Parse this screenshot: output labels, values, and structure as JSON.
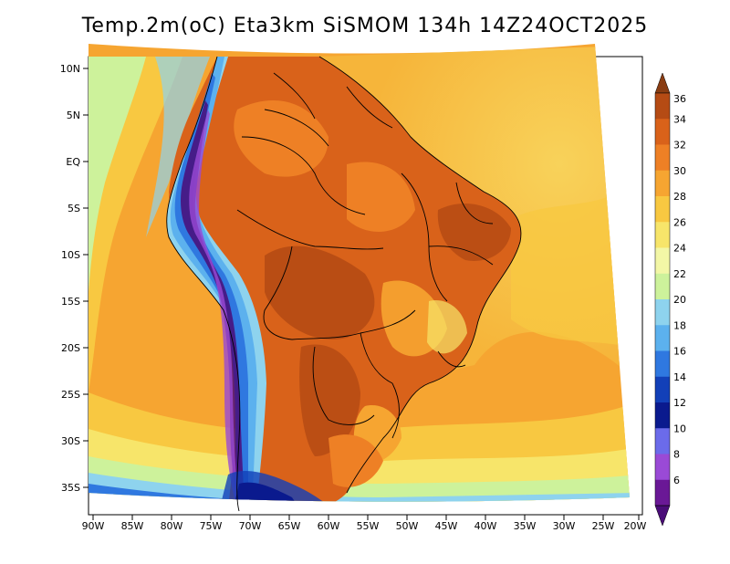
{
  "title": "Temp.2m(oC) Eta3km SiSMOM 134h 14Z24OCT2025",
  "lat_labels": [
    "10N",
    "5N",
    "EQ",
    "5S",
    "10S",
    "15S",
    "20S",
    "25S",
    "30S",
    "35S"
  ],
  "lon_labels": [
    "90W",
    "85W",
    "80W",
    "75W",
    "70W",
    "65W",
    "60W",
    "55W",
    "50W",
    "45W",
    "40W",
    "35W",
    "30W",
    "25W",
    "20W"
  ],
  "colorbar": {
    "labels": [
      "36",
      "34",
      "32",
      "30",
      "28",
      "26",
      "24",
      "22",
      "20",
      "18",
      "16",
      "14",
      "12",
      "10",
      "8",
      "6"
    ],
    "colors": [
      "#8a3d12",
      "#b54b14",
      "#d9621a",
      "#ee8025",
      "#f6a531",
      "#f8c841",
      "#f7e56a",
      "#f3f7a6",
      "#cdf29b",
      "#8ed3ee",
      "#5cb1ee",
      "#2f78e0",
      "#1240b8",
      "#0a1a8e",
      "#6b6bea",
      "#9a4ad6",
      "#6a1896",
      "#4a0c78"
    ]
  }
}
